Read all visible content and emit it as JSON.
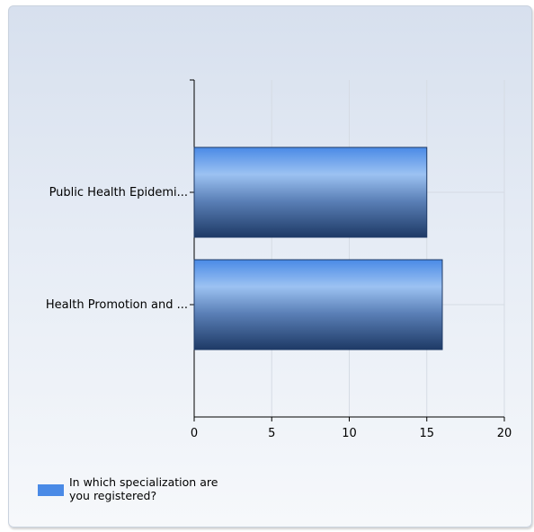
{
  "chart_data": {
    "type": "bar",
    "orientation": "horizontal",
    "categories": [
      "Public Health Epidemi...",
      "Health Promotion and ..."
    ],
    "series": [
      {
        "name": "In which specialization are you registered?",
        "values": [
          15,
          16
        ]
      }
    ],
    "x_ticks": [
      "0",
      "5",
      "10",
      "15",
      "20"
    ],
    "xlim": [
      0,
      20
    ],
    "grid": true,
    "legend_position": "bottom-left",
    "bar_color": "#4a8ae6"
  }
}
